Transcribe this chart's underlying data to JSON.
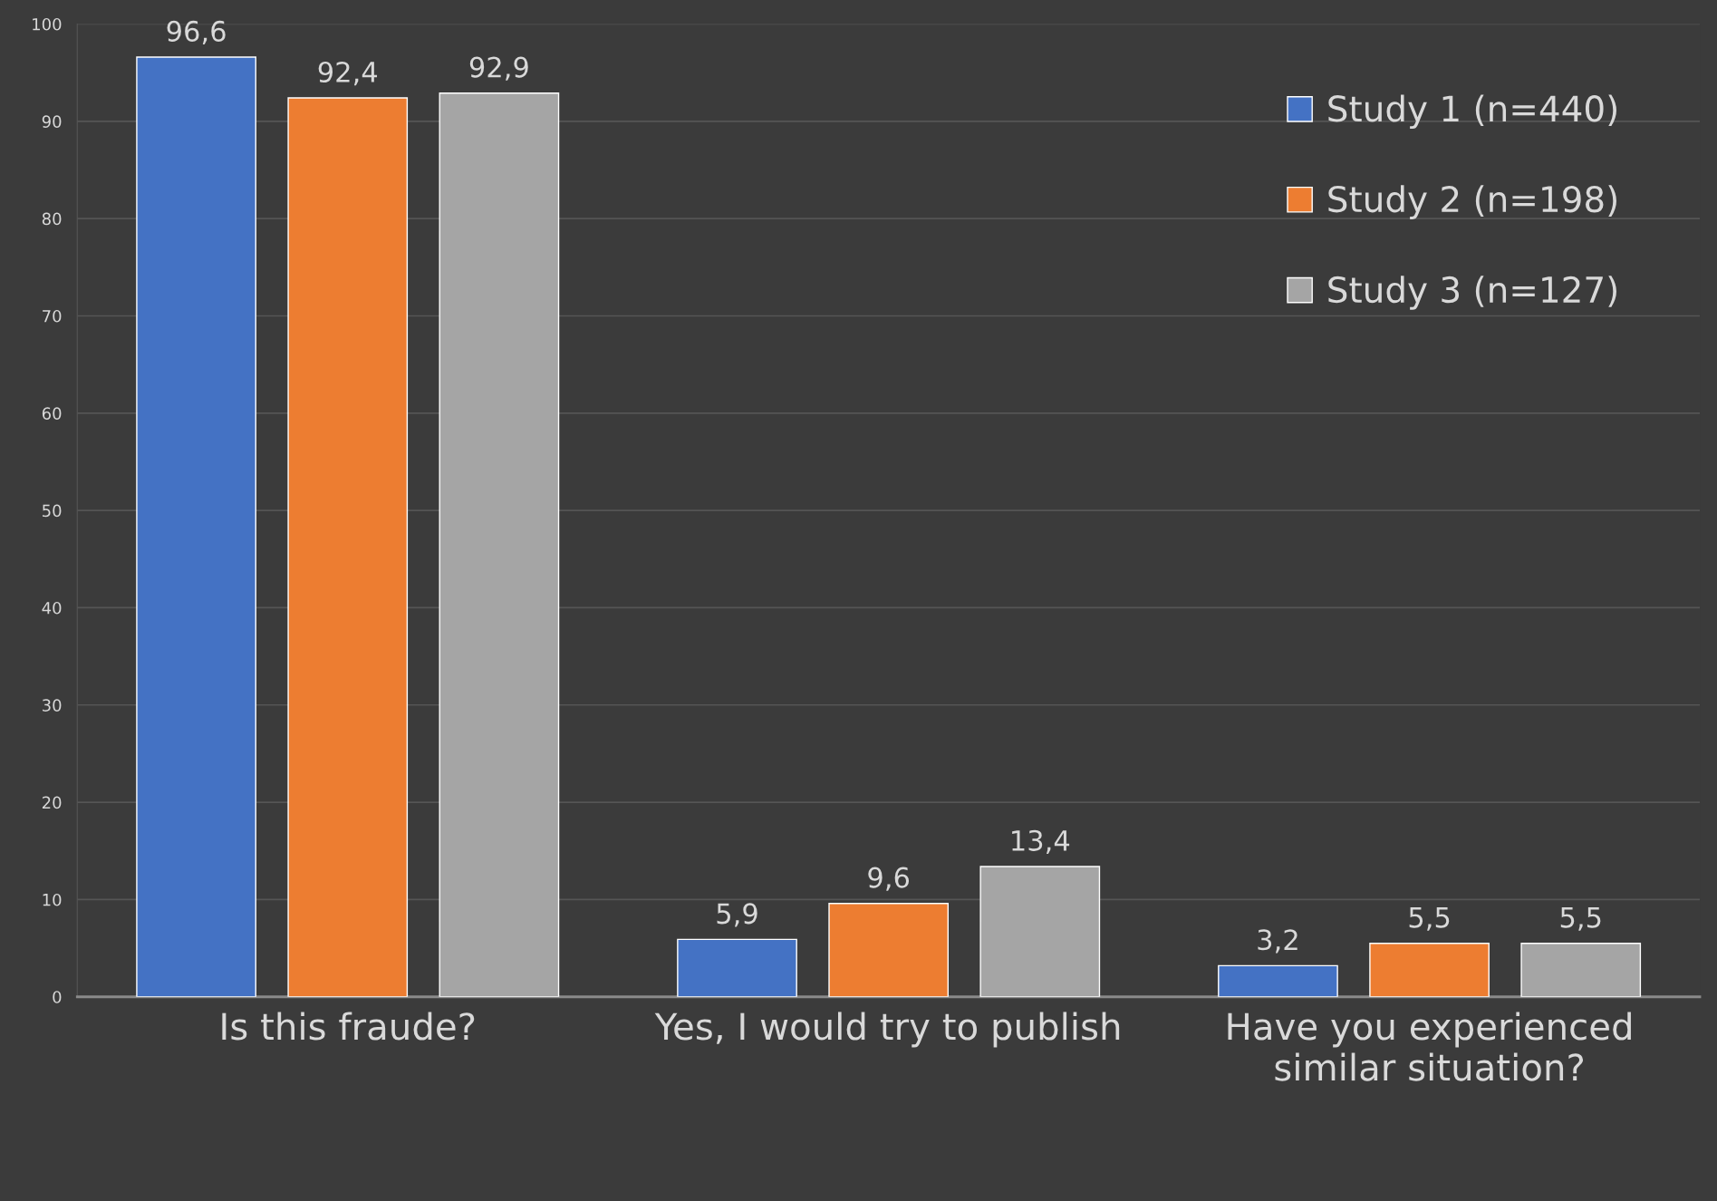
{
  "chart_data": {
    "type": "bar",
    "categories": [
      "Is this fraude?",
      "Yes, I would try to publish",
      "Have you experienced\nsimilar situation?"
    ],
    "series": [
      {
        "name": "Study 1 (n=440)",
        "color": "#4472c4",
        "values": [
          96.6,
          5.9,
          3.2
        ],
        "value_labels": [
          "96,6",
          "5,9",
          "3,2"
        ]
      },
      {
        "name": "Study 2 (n=198)",
        "color": "#ed7d31",
        "values": [
          92.4,
          9.6,
          5.5
        ],
        "value_labels": [
          "92,4",
          "9,6",
          "5,5"
        ]
      },
      {
        "name": "Study 3 (n=127)",
        "color": "#a5a5a5",
        "values": [
          92.9,
          13.4,
          5.5
        ],
        "value_labels": [
          "92,9",
          "13,4",
          "5,5"
        ]
      }
    ],
    "ylim": [
      0,
      100
    ],
    "yticks": [
      0,
      10,
      20,
      30,
      40,
      50,
      60,
      70,
      80,
      90,
      100
    ],
    "grid": "y",
    "legend": "top right"
  }
}
